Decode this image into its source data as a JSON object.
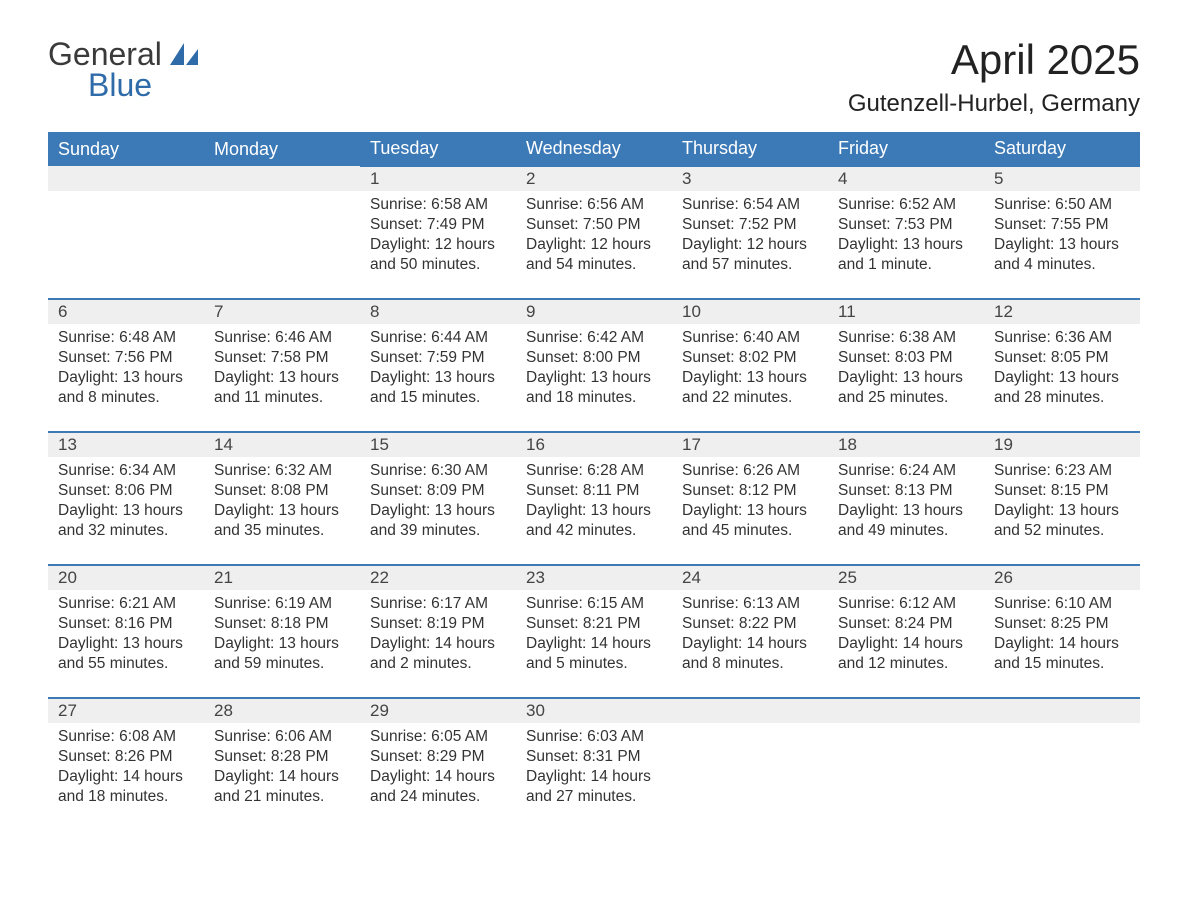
{
  "logo": {
    "text_general": "General",
    "text_blue": "Blue",
    "accent_color": "#2f6ba8"
  },
  "title": {
    "month": "April 2025",
    "location": "Gutenzell-Hurbel, Germany"
  },
  "colors": {
    "header_bg": "#3b79b7",
    "header_text": "#ffffff",
    "daynum_bg": "#efefef",
    "row_border": "#3b79b7",
    "body_text": "#333333",
    "page_bg": "#ffffff"
  },
  "weekdays": [
    "Sunday",
    "Monday",
    "Tuesday",
    "Wednesday",
    "Thursday",
    "Friday",
    "Saturday"
  ],
  "weeks": [
    [
      null,
      null,
      {
        "n": "1",
        "sr": "Sunrise: 6:58 AM",
        "ss": "Sunset: 7:49 PM",
        "d1": "Daylight: 12 hours",
        "d2": "and 50 minutes."
      },
      {
        "n": "2",
        "sr": "Sunrise: 6:56 AM",
        "ss": "Sunset: 7:50 PM",
        "d1": "Daylight: 12 hours",
        "d2": "and 54 minutes."
      },
      {
        "n": "3",
        "sr": "Sunrise: 6:54 AM",
        "ss": "Sunset: 7:52 PM",
        "d1": "Daylight: 12 hours",
        "d2": "and 57 minutes."
      },
      {
        "n": "4",
        "sr": "Sunrise: 6:52 AM",
        "ss": "Sunset: 7:53 PM",
        "d1": "Daylight: 13 hours",
        "d2": "and 1 minute."
      },
      {
        "n": "5",
        "sr": "Sunrise: 6:50 AM",
        "ss": "Sunset: 7:55 PM",
        "d1": "Daylight: 13 hours",
        "d2": "and 4 minutes."
      }
    ],
    [
      {
        "n": "6",
        "sr": "Sunrise: 6:48 AM",
        "ss": "Sunset: 7:56 PM",
        "d1": "Daylight: 13 hours",
        "d2": "and 8 minutes."
      },
      {
        "n": "7",
        "sr": "Sunrise: 6:46 AM",
        "ss": "Sunset: 7:58 PM",
        "d1": "Daylight: 13 hours",
        "d2": "and 11 minutes."
      },
      {
        "n": "8",
        "sr": "Sunrise: 6:44 AM",
        "ss": "Sunset: 7:59 PM",
        "d1": "Daylight: 13 hours",
        "d2": "and 15 minutes."
      },
      {
        "n": "9",
        "sr": "Sunrise: 6:42 AM",
        "ss": "Sunset: 8:00 PM",
        "d1": "Daylight: 13 hours",
        "d2": "and 18 minutes."
      },
      {
        "n": "10",
        "sr": "Sunrise: 6:40 AM",
        "ss": "Sunset: 8:02 PM",
        "d1": "Daylight: 13 hours",
        "d2": "and 22 minutes."
      },
      {
        "n": "11",
        "sr": "Sunrise: 6:38 AM",
        "ss": "Sunset: 8:03 PM",
        "d1": "Daylight: 13 hours",
        "d2": "and 25 minutes."
      },
      {
        "n": "12",
        "sr": "Sunrise: 6:36 AM",
        "ss": "Sunset: 8:05 PM",
        "d1": "Daylight: 13 hours",
        "d2": "and 28 minutes."
      }
    ],
    [
      {
        "n": "13",
        "sr": "Sunrise: 6:34 AM",
        "ss": "Sunset: 8:06 PM",
        "d1": "Daylight: 13 hours",
        "d2": "and 32 minutes."
      },
      {
        "n": "14",
        "sr": "Sunrise: 6:32 AM",
        "ss": "Sunset: 8:08 PM",
        "d1": "Daylight: 13 hours",
        "d2": "and 35 minutes."
      },
      {
        "n": "15",
        "sr": "Sunrise: 6:30 AM",
        "ss": "Sunset: 8:09 PM",
        "d1": "Daylight: 13 hours",
        "d2": "and 39 minutes."
      },
      {
        "n": "16",
        "sr": "Sunrise: 6:28 AM",
        "ss": "Sunset: 8:11 PM",
        "d1": "Daylight: 13 hours",
        "d2": "and 42 minutes."
      },
      {
        "n": "17",
        "sr": "Sunrise: 6:26 AM",
        "ss": "Sunset: 8:12 PM",
        "d1": "Daylight: 13 hours",
        "d2": "and 45 minutes."
      },
      {
        "n": "18",
        "sr": "Sunrise: 6:24 AM",
        "ss": "Sunset: 8:13 PM",
        "d1": "Daylight: 13 hours",
        "d2": "and 49 minutes."
      },
      {
        "n": "19",
        "sr": "Sunrise: 6:23 AM",
        "ss": "Sunset: 8:15 PM",
        "d1": "Daylight: 13 hours",
        "d2": "and 52 minutes."
      }
    ],
    [
      {
        "n": "20",
        "sr": "Sunrise: 6:21 AM",
        "ss": "Sunset: 8:16 PM",
        "d1": "Daylight: 13 hours",
        "d2": "and 55 minutes."
      },
      {
        "n": "21",
        "sr": "Sunrise: 6:19 AM",
        "ss": "Sunset: 8:18 PM",
        "d1": "Daylight: 13 hours",
        "d2": "and 59 minutes."
      },
      {
        "n": "22",
        "sr": "Sunrise: 6:17 AM",
        "ss": "Sunset: 8:19 PM",
        "d1": "Daylight: 14 hours",
        "d2": "and 2 minutes."
      },
      {
        "n": "23",
        "sr": "Sunrise: 6:15 AM",
        "ss": "Sunset: 8:21 PM",
        "d1": "Daylight: 14 hours",
        "d2": "and 5 minutes."
      },
      {
        "n": "24",
        "sr": "Sunrise: 6:13 AM",
        "ss": "Sunset: 8:22 PM",
        "d1": "Daylight: 14 hours",
        "d2": "and 8 minutes."
      },
      {
        "n": "25",
        "sr": "Sunrise: 6:12 AM",
        "ss": "Sunset: 8:24 PM",
        "d1": "Daylight: 14 hours",
        "d2": "and 12 minutes."
      },
      {
        "n": "26",
        "sr": "Sunrise: 6:10 AM",
        "ss": "Sunset: 8:25 PM",
        "d1": "Daylight: 14 hours",
        "d2": "and 15 minutes."
      }
    ],
    [
      {
        "n": "27",
        "sr": "Sunrise: 6:08 AM",
        "ss": "Sunset: 8:26 PM",
        "d1": "Daylight: 14 hours",
        "d2": "and 18 minutes."
      },
      {
        "n": "28",
        "sr": "Sunrise: 6:06 AM",
        "ss": "Sunset: 8:28 PM",
        "d1": "Daylight: 14 hours",
        "d2": "and 21 minutes."
      },
      {
        "n": "29",
        "sr": "Sunrise: 6:05 AM",
        "ss": "Sunset: 8:29 PM",
        "d1": "Daylight: 14 hours",
        "d2": "and 24 minutes."
      },
      {
        "n": "30",
        "sr": "Sunrise: 6:03 AM",
        "ss": "Sunset: 8:31 PM",
        "d1": "Daylight: 14 hours",
        "d2": "and 27 minutes."
      },
      null,
      null,
      null
    ]
  ]
}
